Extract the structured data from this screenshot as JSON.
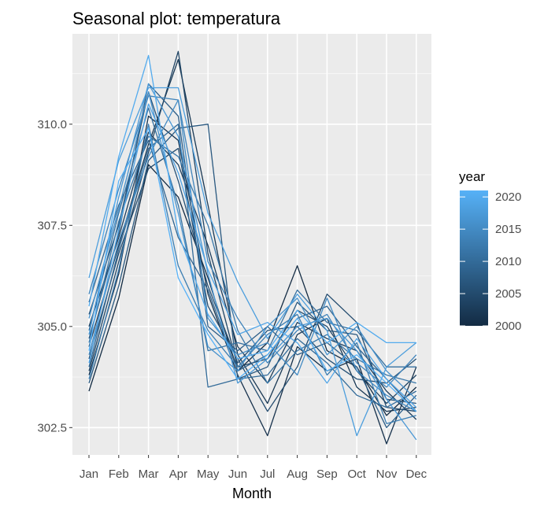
{
  "chart_data": {
    "type": "line",
    "title": "Seasonal plot: temperatura",
    "xlabel": "Month",
    "ylabel": "",
    "categories": [
      "Jan",
      "Feb",
      "Mar",
      "Apr",
      "May",
      "Jun",
      "Jul",
      "Aug",
      "Sep",
      "Oct",
      "Nov",
      "Dec"
    ],
    "ylim": [
      302.0,
      312.0
    ],
    "yticks": [
      "302.5",
      "305.0",
      "307.5",
      "310.0"
    ],
    "ytick_values": [
      302.5,
      305.0,
      307.5,
      310.0
    ],
    "grid": true,
    "legend": {
      "title": "year",
      "position": "right",
      "labels": [
        "2020",
        "2015",
        "2010",
        "2005",
        "2000"
      ],
      "values": [
        2020,
        2015,
        2010,
        2005,
        2000
      ],
      "range": [
        2000,
        2021
      ],
      "color_low": "#132B43",
      "color_high": "#56B1F7"
    },
    "series": [
      {
        "year": 2000,
        "values": [
          303.4,
          305.7,
          309.0,
          308.2,
          306.2,
          303.9,
          304.6,
          306.5,
          304.4,
          304.0,
          302.8,
          303.5
        ]
      },
      {
        "year": 2001,
        "values": [
          303.8,
          306.3,
          310.2,
          309.6,
          305.8,
          303.8,
          302.3,
          304.5,
          303.9,
          304.2,
          302.1,
          304.0
        ]
      },
      {
        "year": 2002,
        "values": [
          304.5,
          307.0,
          309.5,
          311.6,
          308.0,
          304.3,
          303.1,
          304.8,
          305.2,
          303.5,
          302.9,
          303.0
        ]
      },
      {
        "year": 2003,
        "values": [
          305.0,
          307.2,
          309.8,
          309.0,
          307.0,
          304.5,
          303.6,
          305.1,
          304.7,
          304.4,
          303.4,
          302.7
        ]
      },
      {
        "year": 2004,
        "values": [
          303.9,
          306.6,
          309.3,
          311.8,
          306.8,
          304.0,
          304.2,
          305.4,
          305.0,
          303.9,
          303.1,
          303.8
        ]
      },
      {
        "year": 2005,
        "values": [
          304.2,
          306.8,
          308.9,
          309.4,
          305.5,
          304.2,
          302.9,
          304.0,
          305.8,
          305.1,
          303.0,
          302.9
        ]
      },
      {
        "year": 2006,
        "values": [
          305.3,
          307.5,
          310.8,
          308.6,
          306.0,
          304.1,
          304.9,
          305.0,
          304.2,
          303.7,
          303.6,
          304.2
        ]
      },
      {
        "year": 2007,
        "values": [
          303.6,
          306.0,
          309.1,
          309.9,
          310.0,
          303.7,
          304.0,
          305.6,
          304.9,
          304.8,
          303.2,
          303.1
        ]
      },
      {
        "year": 2008,
        "values": [
          304.7,
          307.3,
          311.0,
          310.2,
          305.0,
          304.4,
          305.0,
          304.3,
          304.6,
          304.0,
          302.5,
          303.3
        ]
      },
      {
        "year": 2009,
        "values": [
          305.6,
          308.0,
          309.6,
          307.2,
          305.9,
          303.9,
          304.3,
          305.2,
          305.5,
          304.5,
          303.7,
          302.9
        ]
      },
      {
        "year": 2010,
        "values": [
          304.0,
          306.9,
          309.4,
          310.0,
          303.5,
          303.7,
          303.8,
          304.7,
          304.1,
          303.3,
          303.0,
          303.4
        ]
      },
      {
        "year": 2011,
        "values": [
          304.9,
          307.8,
          310.4,
          308.0,
          304.4,
          304.6,
          304.4,
          305.9,
          305.1,
          304.9,
          304.0,
          304.0
        ]
      },
      {
        "year": 2012,
        "values": [
          304.6,
          307.6,
          309.7,
          309.2,
          307.5,
          304.9,
          303.6,
          304.4,
          304.8,
          304.2,
          303.8,
          303.6
        ]
      },
      {
        "year": 2013,
        "values": [
          303.7,
          306.4,
          310.0,
          306.5,
          304.9,
          304.0,
          304.8,
          305.3,
          303.8,
          304.6,
          302.6,
          302.8
        ]
      },
      {
        "year": 2014,
        "values": [
          305.8,
          308.4,
          310.7,
          310.6,
          306.6,
          305.2,
          304.1,
          304.9,
          305.3,
          304.1,
          303.5,
          304.3
        ]
      },
      {
        "year": 2015,
        "values": [
          304.3,
          307.1,
          309.2,
          310.6,
          305.2,
          304.3,
          304.6,
          303.8,
          305.7,
          303.9,
          303.3,
          302.9
        ]
      },
      {
        "year": 2016,
        "values": [
          305.2,
          307.9,
          310.8,
          307.8,
          304.5,
          303.9,
          305.0,
          305.7,
          304.3,
          305.0,
          303.9,
          303.2
        ]
      },
      {
        "year": 2017,
        "values": [
          304.8,
          308.2,
          311.0,
          309.7,
          306.3,
          303.6,
          304.2,
          305.0,
          305.2,
          304.4,
          303.2,
          302.2
        ]
      },
      {
        "year": 2018,
        "values": [
          306.2,
          309.1,
          310.9,
          310.9,
          307.8,
          306.1,
          304.7,
          305.8,
          304.9,
          302.3,
          304.0,
          304.6
        ]
      },
      {
        "year": 2019,
        "values": [
          304.1,
          307.4,
          310.5,
          308.8,
          306.4,
          304.8,
          305.1,
          304.6,
          303.6,
          304.7,
          303.7,
          303.0
        ]
      },
      {
        "year": 2020,
        "values": [
          305.5,
          309.2,
          311.7,
          307.3,
          305.3,
          304.2,
          304.4,
          305.4,
          304.6,
          305.1,
          304.6,
          304.6
        ]
      },
      {
        "year": 2021,
        "values": [
          304.4,
          308.6,
          309.9,
          306.2,
          304.8,
          303.7,
          304.3,
          305.2,
          303.9,
          304.3,
          303.6,
          302.9
        ]
      }
    ]
  }
}
